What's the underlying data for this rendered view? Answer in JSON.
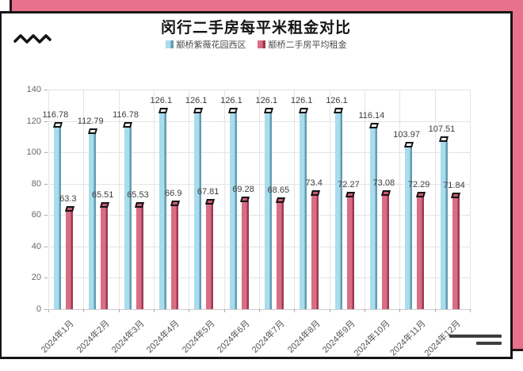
{
  "header": {
    "title": "闵行二手房每平米租金对比"
  },
  "colors": {
    "card_pink": "#e8718c",
    "card_border": "#24141a",
    "series1_fill": "#a9dcec",
    "series1_side": "#649cb1",
    "series1_cap": "#eef9fc",
    "series2_fill": "#d96d86",
    "series2_side": "#9e3a52",
    "series2_cap": "#cc5a74",
    "grid": "#e4e4e4"
  },
  "chart_data": {
    "type": "bar",
    "title": "闵行二手房每平米租金对比",
    "categories": [
      "2024年1月",
      "2024年2月",
      "2024年3月",
      "2024年4月",
      "2024年5月",
      "2024年6月",
      "2024年7月",
      "2024年8月",
      "2024年9月",
      "2024年10月",
      "2024年11月",
      "2024年12月"
    ],
    "series": [
      {
        "name": "颛桥紫薇花园西区",
        "values": [
          116.78,
          112.79,
          116.78,
          126.1,
          126.1,
          126.1,
          126.1,
          126.1,
          126.1,
          116.14,
          103.97,
          107.51
        ]
      },
      {
        "name": "颛桥二手房平均租金",
        "values": [
          63.3,
          65.51,
          65.53,
          66.9,
          67.81,
          69.28,
          68.65,
          73.4,
          72.27,
          73.08,
          72.29,
          71.84
        ]
      }
    ],
    "xlabel": "",
    "ylabel": "",
    "ylim": [
      0,
      140
    ],
    "yticks": [
      0,
      20,
      40,
      60,
      80,
      100,
      120,
      140
    ],
    "grid": true,
    "legend_position": "top",
    "value_labels": true
  }
}
